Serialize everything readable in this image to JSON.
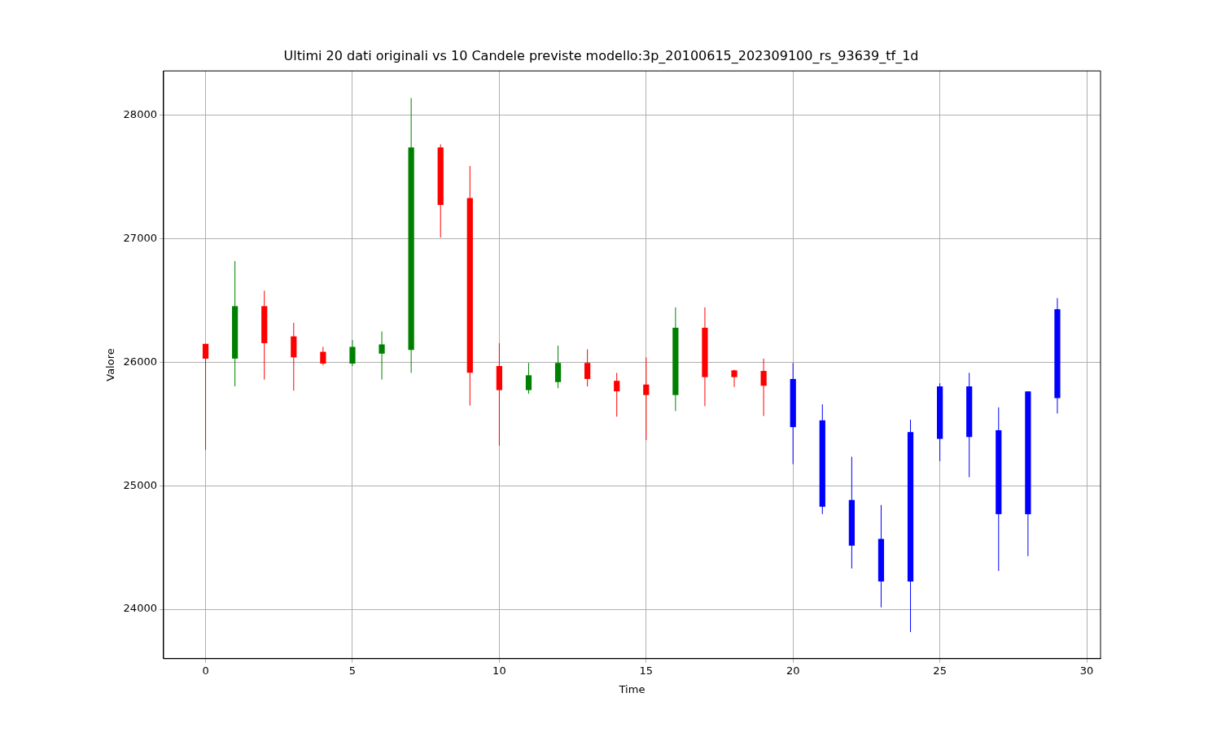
{
  "chart_data": {
    "type": "candlestick",
    "title": "Ultimi 20 dati originali vs 10 Candele previste modello:3p_20100615_202309100_rs_93639_tf_1d",
    "xlabel": "Time",
    "ylabel": "Valore",
    "x": [
      0,
      1,
      2,
      3,
      4,
      5,
      6,
      7,
      8,
      9,
      10,
      11,
      12,
      13,
      14,
      15,
      16,
      17,
      18,
      19,
      20,
      21,
      22,
      23,
      24,
      25,
      26,
      27,
      28,
      29
    ],
    "ohlc": [
      [
        26150,
        26150,
        25290,
        26030
      ],
      [
        26030,
        26820,
        25805,
        26455
      ],
      [
        26455,
        26580,
        25860,
        26155
      ],
      [
        26210,
        26320,
        25770,
        26040
      ],
      [
        26085,
        26125,
        25975,
        25990
      ],
      [
        25990,
        26180,
        25970,
        26125
      ],
      [
        26070,
        26250,
        25860,
        26145
      ],
      [
        26100,
        28140,
        25915,
        27740
      ],
      [
        27740,
        27765,
        27010,
        27275
      ],
      [
        27330,
        27590,
        25650,
        25915
      ],
      [
        25970,
        26155,
        25325,
        25775
      ],
      [
        25775,
        25995,
        25745,
        25895
      ],
      [
        25840,
        26135,
        25790,
        25995
      ],
      [
        25995,
        26105,
        25805,
        25865
      ],
      [
        25850,
        25915,
        25560,
        25765
      ],
      [
        25820,
        26040,
        25370,
        25735
      ],
      [
        25735,
        26445,
        25605,
        26280
      ],
      [
        26280,
        26445,
        25645,
        25880
      ],
      [
        25935,
        25940,
        25800,
        25880
      ],
      [
        25930,
        26030,
        25565,
        25810
      ],
      [
        25865,
        25995,
        25175,
        25475
      ],
      [
        25530,
        25660,
        24770,
        24830
      ],
      [
        24885,
        25235,
        24330,
        24515
      ],
      [
        24570,
        24845,
        24015,
        24225
      ],
      [
        24225,
        25535,
        23815,
        25435
      ],
      [
        25380,
        25830,
        25200,
        25805
      ],
      [
        25395,
        25915,
        25070,
        25805
      ],
      [
        25450,
        25635,
        24310,
        24770
      ],
      [
        24770,
        25765,
        24430,
        25765
      ],
      [
        25710,
        26520,
        25585,
        26430
      ]
    ],
    "colors": [
      "#ff0000",
      "#008000",
      "#ff0000",
      "#ff0000",
      "#ff0000",
      "#008000",
      "#008000",
      "#008000",
      "#ff0000",
      "#ff0000",
      "#ff0000",
      "#008000",
      "#008000",
      "#ff0000",
      "#ff0000",
      "#ff0000",
      "#008000",
      "#ff0000",
      "#ff0000",
      "#ff0000",
      "#0000ff",
      "#0000ff",
      "#0000ff",
      "#0000ff",
      "#0000ff",
      "#0000ff",
      "#0000ff",
      "#0000ff",
      "#0000ff",
      "#0000ff"
    ],
    "xlim": [
      -1.43,
      30.47
    ],
    "ylim": [
      23600,
      28360
    ],
    "xticks": [
      0,
      5,
      10,
      15,
      20,
      25,
      30
    ],
    "yticks": [
      24000,
      25000,
      26000,
      27000,
      28000
    ],
    "grid": true
  }
}
